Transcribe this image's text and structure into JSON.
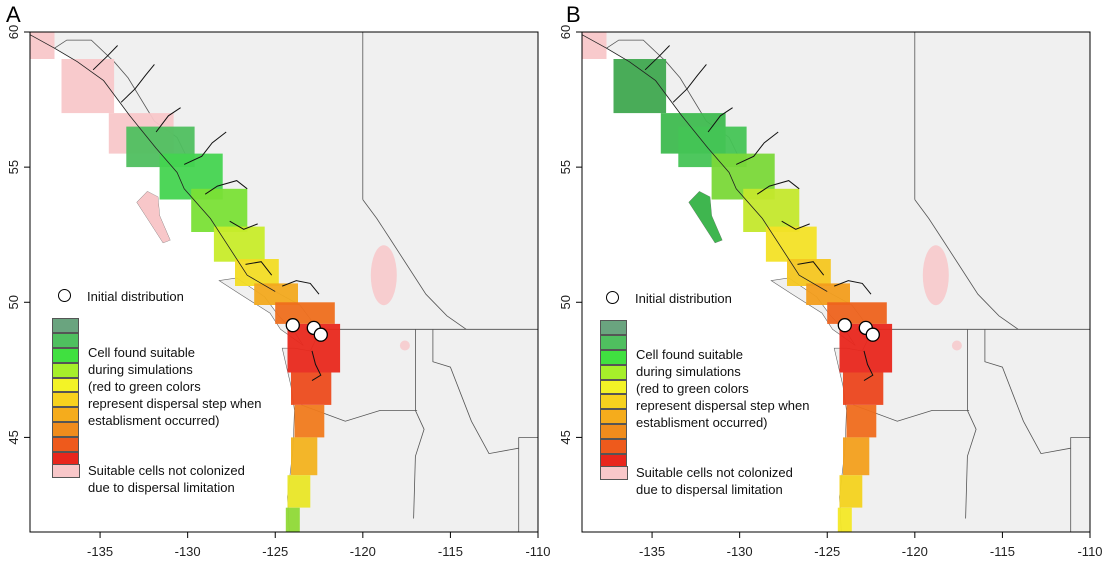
{
  "panels": [
    {
      "letter": "A",
      "variant": "A"
    },
    {
      "letter": "B",
      "variant": "B"
    }
  ],
  "axes": {
    "x_ticks": [
      "-135",
      "-130",
      "-125",
      "-120",
      "-115",
      "-110"
    ],
    "x_values": [
      -135,
      -130,
      -125,
      -120,
      -115,
      -110
    ],
    "y_ticks": [
      "60",
      "55",
      "50",
      "45"
    ],
    "y_values": [
      60,
      55,
      50,
      45
    ],
    "lon_range": [
      -139,
      -110
    ],
    "lat_range": [
      41.5,
      60
    ]
  },
  "legend": {
    "initial_label": "Initial distribution",
    "suitable_lines": [
      "Cell found suitable",
      "during simulations",
      "(red to green colors",
      "represent dispersal step when",
      "establisment occurred)"
    ],
    "not_colonized_lines": [
      "Suitable cells not colonized",
      "due to dispersal limitation"
    ],
    "gradient_colors": [
      "#6aa47f",
      "#4fbf5f",
      "#40e040",
      "#a6ef2a",
      "#f3f326",
      "#f7d21e",
      "#f5ac1c",
      "#f08c1c",
      "#ee5a1c",
      "#e8261c"
    ],
    "pink_color": "#f8c7c9"
  },
  "colors": {
    "land": "#f0f0f0",
    "ocean": "#ffffff",
    "border": "#555555",
    "pink": "#f8c7c9"
  },
  "initial_points": [
    {
      "lon": -124.0,
      "lat": 49.15
    },
    {
      "lon": -122.8,
      "lat": 49.05
    },
    {
      "lon": -122.4,
      "lat": 48.8
    }
  ]
}
